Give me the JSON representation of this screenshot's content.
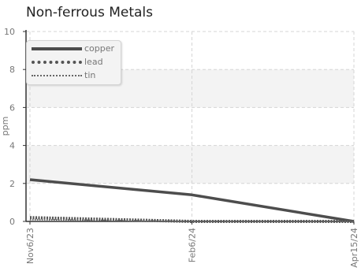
{
  "chart_data": {
    "type": "line",
    "title": "Non-ferrous Metals",
    "ylabel": "ppm",
    "xlabel": "",
    "ylim": [
      0,
      10
    ],
    "yticks": [
      0,
      2,
      4,
      6,
      8,
      10
    ],
    "x_labels": [
      "Nov6/23",
      "Feb6/24",
      "Apr15/24"
    ],
    "x": [
      "Nov6/23",
      "Feb6/24",
      "Apr15/24"
    ],
    "series": [
      {
        "name": "copper",
        "values": [
          2.2,
          1.4,
          0.0
        ]
      },
      {
        "name": "lead",
        "values": [
          0.2,
          0.0,
          0.0
        ]
      },
      {
        "name": "tin",
        "values": [
          0.1,
          0.0,
          0.0
        ]
      }
    ],
    "grid": true,
    "legend": "top-left"
  },
  "colors": {
    "copper": "#4d4d4d",
    "lead": "#555555",
    "tin": "#666666",
    "band": "#f3f3f3",
    "grid": "#d5d5d5",
    "axis": "#333333",
    "text": "#777777"
  }
}
